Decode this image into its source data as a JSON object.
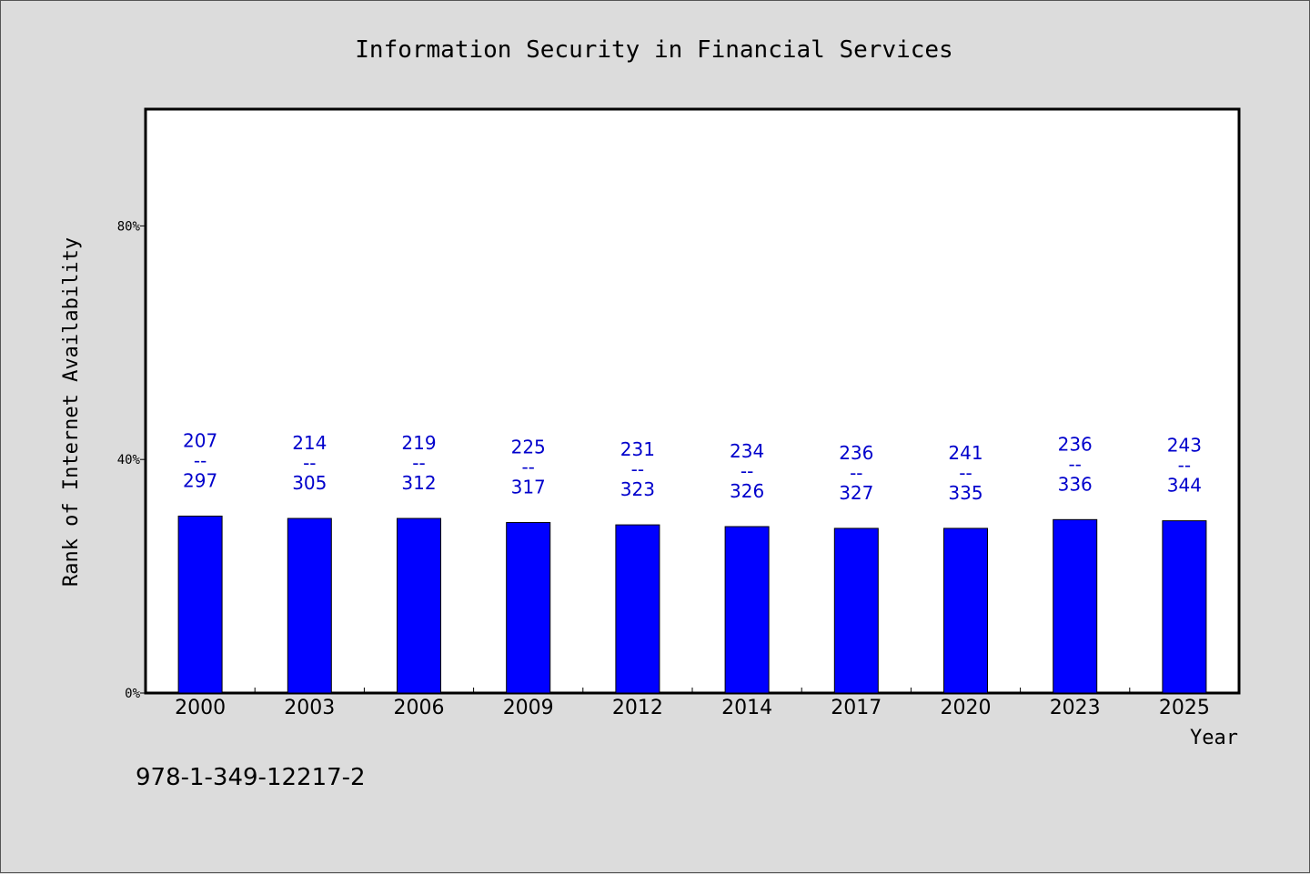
{
  "chart_data": {
    "type": "bar",
    "title": "Information Security in Financial Services",
    "xlabel": "Year",
    "ylabel": "Rank of Internet Availability",
    "categories": [
      "2000",
      "2003",
      "2006",
      "2009",
      "2012",
      "2014",
      "2017",
      "2020",
      "2023",
      "2025"
    ],
    "series": [
      {
        "values": [
          30.3,
          29.9,
          29.9,
          29.2,
          28.8,
          28.5,
          28.2,
          28.2,
          29.7,
          29.5
        ],
        "data_labels": [
          [
            "207",
            "297"
          ],
          [
            "214",
            "305"
          ],
          [
            "219",
            "312"
          ],
          [
            "225",
            "317"
          ],
          [
            "231",
            "323"
          ],
          [
            "234",
            "326"
          ],
          [
            "236",
            "327"
          ],
          [
            "241",
            "335"
          ],
          [
            "236",
            "336"
          ],
          [
            "243",
            "344"
          ]
        ],
        "label_separator": "--",
        "color": "#0000ff"
      }
    ],
    "ylim": [
      0,
      100
    ],
    "yticks": [
      0,
      40,
      80
    ],
    "ytick_labels": [
      "0%",
      "40%",
      "80%"
    ],
    "grid": false,
    "legend": "none",
    "label_color": "#0000cc"
  },
  "footer_code": "978-1-349-12217-2",
  "colors": {
    "background": "#dcdcdc",
    "plot_area": "#ffffff",
    "bar": "#0000ff",
    "data_label": "#0000cc"
  }
}
